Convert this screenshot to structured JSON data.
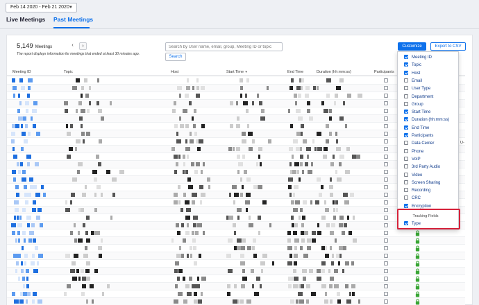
{
  "date_range": {
    "label": "Feb 14 2020 - Feb 21 2020"
  },
  "tabs": [
    {
      "label": "Live Meetings",
      "active": false
    },
    {
      "label": "Past Meetings",
      "active": true
    }
  ],
  "summary": {
    "count": "5,149",
    "unit": "Meetings",
    "note": "The report displays information for meetings that ended at least 30 minutes ago."
  },
  "pagination": {
    "prev": "‹",
    "next": "›"
  },
  "search": {
    "placeholder": "Search by User name, email, group, Meeting ID or topic",
    "value": "",
    "button_label": "Search"
  },
  "toolbar": {
    "customize_label": "Customize",
    "export_label": "Export to CSV"
  },
  "table": {
    "columns": [
      "Meeting ID",
      "Topic",
      "Host",
      "Start Time",
      "End Time",
      "Duration (hh:mm:ss)",
      "Participants"
    ],
    "sort_indicator": "▼"
  },
  "customize_menu": {
    "items": [
      {
        "label": "Meeting ID",
        "checked": true
      },
      {
        "label": "Topic",
        "checked": true
      },
      {
        "label": "Host",
        "checked": true
      },
      {
        "label": "Email",
        "checked": false
      },
      {
        "label": "User Type",
        "checked": false
      },
      {
        "label": "Department",
        "checked": false
      },
      {
        "label": "Group",
        "checked": false
      },
      {
        "label": "Start Time",
        "checked": true
      },
      {
        "label": "Duration (hh:mm:ss)",
        "checked": true
      },
      {
        "label": "End Time",
        "checked": true
      },
      {
        "label": "Participants",
        "checked": true
      },
      {
        "label": "Data Center",
        "checked": false
      },
      {
        "label": "Phone",
        "checked": false
      },
      {
        "label": "VoIP",
        "checked": false
      },
      {
        "label": "3rd Party Audio",
        "checked": false
      },
      {
        "label": "Video",
        "checked": false
      },
      {
        "label": "Screen Sharing",
        "checked": false
      },
      {
        "label": "Recording",
        "checked": false
      },
      {
        "label": "CRC",
        "checked": false
      },
      {
        "label": "Encryption",
        "checked": true
      }
    ],
    "tracking_fields_label": "Tracking Fields",
    "tracking_items": [
      {
        "label": "Type",
        "checked": true
      }
    ]
  },
  "right_fragment": "U-",
  "colors": {
    "accent": "#0e71eb",
    "highlight": "#d6223a",
    "lock": "#3aa636",
    "background": "#eef0f4"
  },
  "icons": {
    "lock": "lock-icon",
    "chevron": "chevron-down-icon"
  }
}
